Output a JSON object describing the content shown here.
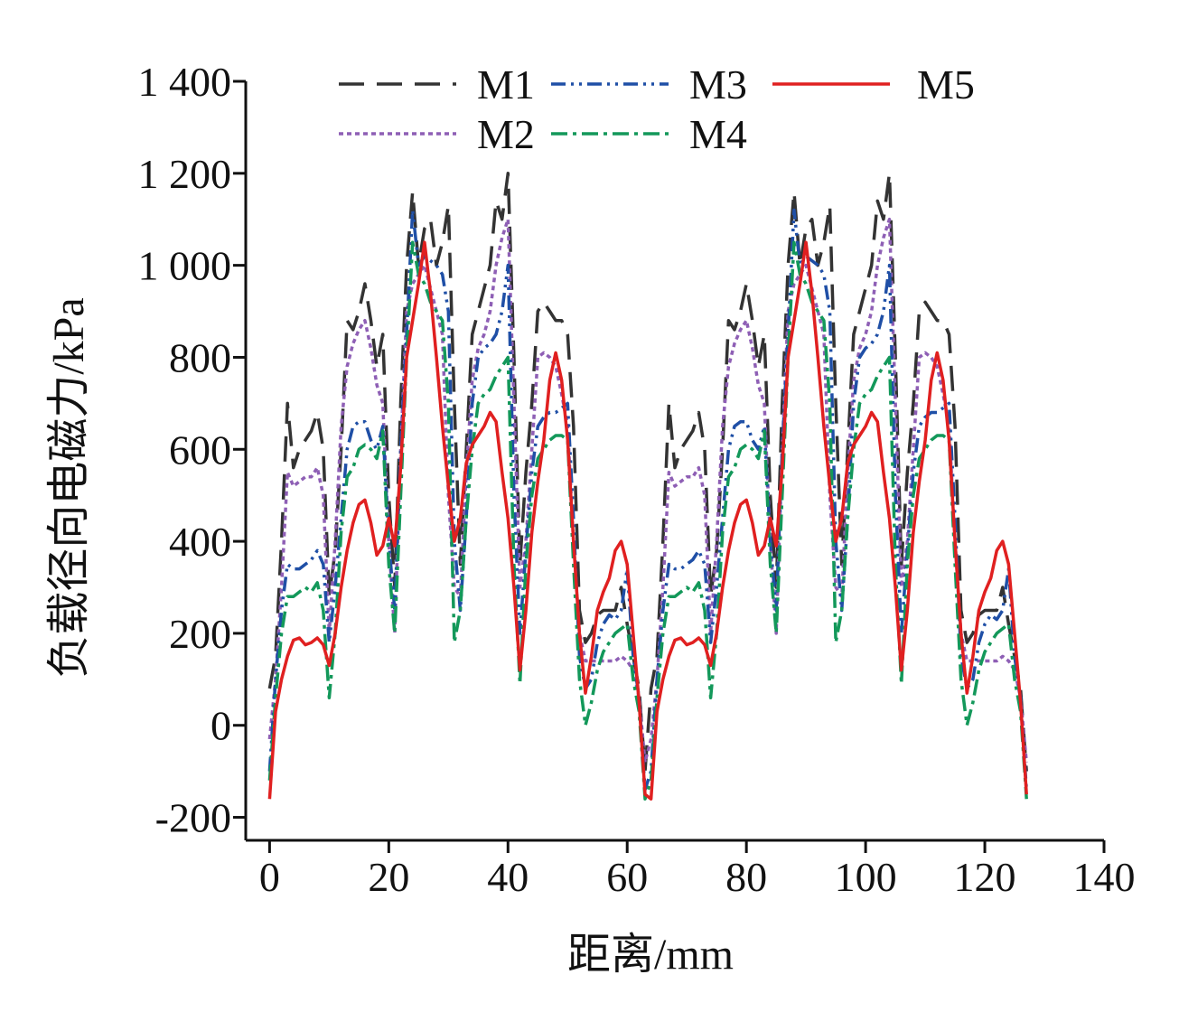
{
  "chart_data": {
    "type": "line",
    "xlabel": "距离/mm",
    "ylabel": "负载径向电磁力/kPa",
    "xlim": [
      -4,
      140
    ],
    "xticks": [
      0,
      20,
      40,
      60,
      80,
      100,
      120,
      140
    ],
    "ylim": [
      -250,
      1400
    ],
    "yticks": [
      -200,
      0,
      200,
      400,
      600,
      800,
      {
        "value": 1000,
        "label": "1 000"
      },
      {
        "value": 1200,
        "label": "1 200"
      },
      {
        "value": 1400,
        "label": "1 400"
      }
    ],
    "legend": "upper left",
    "x": [
      0,
      1,
      2,
      3,
      4,
      5,
      6,
      7,
      8,
      9,
      10,
      11,
      12,
      13,
      14,
      15,
      16,
      17,
      18,
      19,
      20,
      21,
      22,
      23,
      24,
      25,
      26,
      27,
      28,
      29,
      30,
      31,
      32,
      33,
      34,
      35,
      36,
      37,
      38,
      39,
      40,
      41,
      42,
      43,
      44,
      45,
      46,
      47,
      48,
      49,
      50,
      51,
      52,
      53,
      54,
      55,
      56,
      57,
      58,
      59,
      60,
      61,
      62,
      63,
      64,
      65,
      66,
      67,
      68,
      69,
      70,
      71,
      72,
      73,
      74,
      75,
      76,
      77,
      78,
      79,
      80,
      81,
      82,
      83,
      84,
      85,
      86,
      87,
      88,
      89,
      90,
      91,
      92,
      93,
      94,
      95,
      96,
      97,
      98,
      99,
      100,
      101,
      102,
      103,
      104,
      105,
      106,
      107,
      108,
      109,
      110,
      111,
      112,
      113,
      114,
      115,
      116,
      117,
      118,
      119,
      120,
      121,
      122,
      123,
      124,
      125,
      126,
      127
    ],
    "series": [
      {
        "name": "M1",
        "color": "#333333",
        "dash": "28,14",
        "values": [
          80,
          150,
          400,
          700,
          560,
          600,
          620,
          640,
          680,
          600,
          280,
          380,
          600,
          880,
          860,
          900,
          960,
          880,
          780,
          850,
          500,
          300,
          700,
          1000,
          1160,
          1000,
          1080,
          1100,
          1000,
          1050,
          1130,
          700,
          350,
          600,
          850,
          900,
          950,
          1000,
          1140,
          1100,
          1200,
          800,
          350,
          550,
          700,
          900,
          920,
          900,
          880,
          880,
          850,
          650,
          250,
          180,
          200,
          240,
          250,
          250,
          250,
          300,
          220,
          150,
          80,
          -100,
          80,
          150,
          400,
          700,
          560,
          600,
          620,
          640,
          680,
          600,
          280,
          380,
          600,
          880,
          860,
          900,
          960,
          880,
          780,
          850,
          500,
          300,
          700,
          1000,
          1160,
          1000,
          1080,
          1100,
          1000,
          1050,
          1130,
          700,
          350,
          600,
          850,
          900,
          950,
          1000,
          1140,
          1100,
          1200,
          800,
          350,
          550,
          700,
          900,
          920,
          900,
          880,
          880,
          850,
          650,
          250,
          180,
          200,
          240,
          250,
          250,
          250,
          300,
          220,
          150,
          80,
          -100
        ]
      },
      {
        "name": "M2",
        "color": "#8e5fb5",
        "dash": "5,4",
        "values": [
          -30,
          100,
          300,
          550,
          520,
          530,
          540,
          540,
          560,
          500,
          200,
          400,
          650,
          780,
          830,
          860,
          880,
          820,
          740,
          700,
          400,
          200,
          600,
          900,
          960,
          980,
          1000,
          950,
          900,
          850,
          500,
          300,
          280,
          550,
          750,
          820,
          850,
          900,
          1000,
          1060,
          1100,
          700,
          300,
          400,
          600,
          800,
          810,
          800,
          780,
          720,
          650,
          400,
          200,
          140,
          140,
          140,
          140,
          140,
          140,
          150,
          140,
          120,
          60,
          -80,
          -30,
          100,
          300,
          550,
          520,
          530,
          540,
          540,
          560,
          500,
          200,
          400,
          650,
          780,
          830,
          860,
          880,
          820,
          740,
          700,
          400,
          200,
          600,
          900,
          960,
          980,
          1000,
          950,
          900,
          850,
          500,
          300,
          280,
          550,
          750,
          820,
          850,
          900,
          1000,
          1060,
          1100,
          700,
          300,
          400,
          600,
          800,
          810,
          800,
          780,
          720,
          650,
          400,
          200,
          140,
          140,
          140,
          140,
          140,
          140,
          150,
          140,
          120,
          60,
          -80
        ]
      },
      {
        "name": "M3",
        "color": "#1f4fa6",
        "dash": "16,6,3,6,3,6",
        "values": [
          -100,
          100,
          250,
          350,
          340,
          340,
          350,
          360,
          380,
          350,
          180,
          300,
          450,
          600,
          650,
          660,
          660,
          620,
          600,
          650,
          400,
          250,
          600,
          850,
          1120,
          1000,
          1020,
          1010,
          1000,
          980,
          900,
          400,
          250,
          450,
          700,
          800,
          820,
          830,
          850,
          900,
          1000,
          500,
          200,
          380,
          550,
          650,
          670,
          680,
          680,
          690,
          700,
          450,
          150,
          80,
          100,
          180,
          220,
          240,
          230,
          250,
          340,
          150,
          60,
          -140,
          -100,
          100,
          250,
          350,
          340,
          340,
          350,
          360,
          380,
          350,
          180,
          300,
          450,
          600,
          650,
          660,
          660,
          620,
          600,
          650,
          400,
          250,
          600,
          850,
          1120,
          1000,
          1020,
          1010,
          1000,
          980,
          900,
          400,
          250,
          450,
          700,
          800,
          820,
          830,
          850,
          900,
          1000,
          500,
          200,
          380,
          550,
          650,
          670,
          680,
          680,
          690,
          700,
          450,
          150,
          80,
          100,
          180,
          220,
          240,
          230,
          250,
          340,
          150,
          60,
          -140
        ]
      },
      {
        "name": "M4",
        "color": "#13985a",
        "dash": "18,6,4,6",
        "values": [
          -120,
          60,
          200,
          280,
          280,
          290,
          300,
          290,
          310,
          250,
          60,
          200,
          420,
          540,
          560,
          600,
          610,
          600,
          580,
          640,
          350,
          200,
          500,
          800,
          1050,
          980,
          960,
          920,
          900,
          880,
          700,
          180,
          250,
          450,
          600,
          700,
          720,
          730,
          760,
          780,
          800,
          350,
          90,
          350,
          500,
          580,
          600,
          620,
          630,
          630,
          620,
          350,
          100,
          0,
          50,
          120,
          160,
          180,
          200,
          210,
          220,
          100,
          30,
          -160,
          -120,
          60,
          200,
          280,
          280,
          290,
          300,
          290,
          310,
          250,
          60,
          200,
          420,
          540,
          560,
          600,
          610,
          600,
          580,
          640,
          350,
          200,
          500,
          800,
          1050,
          980,
          960,
          920,
          900,
          880,
          700,
          180,
          250,
          450,
          600,
          700,
          720,
          730,
          760,
          780,
          800,
          350,
          90,
          350,
          500,
          580,
          600,
          620,
          630,
          630,
          620,
          350,
          100,
          0,
          50,
          120,
          160,
          180,
          200,
          210,
          220,
          100,
          30,
          -160
        ]
      },
      {
        "name": "M5",
        "color": "#e02020",
        "dash": "none",
        "values": [
          -160,
          30,
          100,
          150,
          185,
          190,
          175,
          180,
          190,
          175,
          130,
          200,
          300,
          380,
          440,
          480,
          490,
          440,
          370,
          390,
          450,
          390,
          560,
          800,
          880,
          960,
          1050,
          940,
          800,
          650,
          520,
          400,
          450,
          570,
          610,
          630,
          650,
          680,
          660,
          550,
          450,
          300,
          120,
          250,
          420,
          530,
          620,
          750,
          810,
          750,
          620,
          400,
          200,
          70,
          150,
          250,
          290,
          320,
          380,
          400,
          350,
          200,
          50,
          -150,
          -160,
          30,
          100,
          150,
          185,
          190,
          175,
          180,
          190,
          175,
          130,
          200,
          300,
          380,
          440,
          480,
          490,
          440,
          370,
          390,
          450,
          390,
          560,
          800,
          880,
          960,
          1050,
          940,
          800,
          650,
          520,
          400,
          450,
          570,
          610,
          630,
          650,
          680,
          660,
          550,
          450,
          300,
          120,
          250,
          420,
          530,
          620,
          750,
          810,
          750,
          620,
          400,
          200,
          70,
          150,
          250,
          290,
          320,
          380,
          400,
          350,
          200,
          50,
          -150
        ]
      }
    ]
  }
}
